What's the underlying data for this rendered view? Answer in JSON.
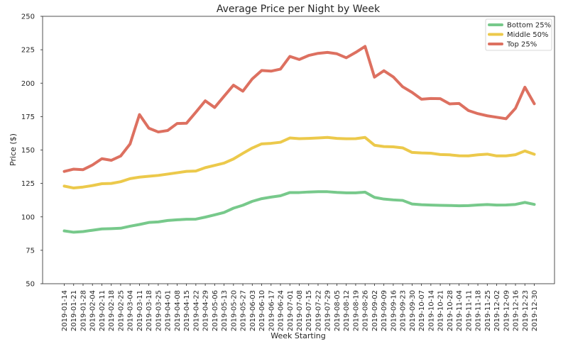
{
  "chart_data": {
    "type": "line",
    "title": "Average Price per Night by Week",
    "xlabel": "Week Starting",
    "ylabel": "Price ($)",
    "ylim": [
      50,
      250
    ],
    "yticks": [
      50,
      75,
      100,
      125,
      150,
      175,
      200,
      225,
      250
    ],
    "grid": false,
    "legend_position": "top-right",
    "categories": [
      "2019-01-14",
      "2019-01-21",
      "2019-01-28",
      "2019-02-04",
      "2019-02-11",
      "2019-02-18",
      "2019-02-25",
      "2019-03-04",
      "2019-03-11",
      "2019-03-18",
      "2019-03-25",
      "2019-04-01",
      "2019-04-08",
      "2019-04-15",
      "2019-04-22",
      "2019-04-29",
      "2019-05-06",
      "2019-05-13",
      "2019-05-20",
      "2019-05-27",
      "2019-06-03",
      "2019-06-10",
      "2019-06-17",
      "2019-06-24",
      "2019-07-01",
      "2019-07-08",
      "2019-07-15",
      "2019-07-22",
      "2019-07-29",
      "2019-08-05",
      "2019-08-12",
      "2019-08-19",
      "2019-08-26",
      "2019-09-02",
      "2019-09-09",
      "2019-09-16",
      "2019-09-23",
      "2019-09-30",
      "2019-10-07",
      "2019-10-14",
      "2019-10-21",
      "2019-10-28",
      "2019-11-04",
      "2019-11-11",
      "2019-11-18",
      "2019-11-25",
      "2019-12-02",
      "2019-12-09",
      "2019-12-16",
      "2019-12-23",
      "2019-12-30"
    ],
    "series": [
      {
        "name": "Bottom 25%",
        "color": "#77c98b",
        "values": [
          89.5,
          88.5,
          89,
          90,
          91,
          91.2,
          91.5,
          93,
          94.3,
          95.8,
          96.2,
          97.3,
          97.8,
          98.2,
          98.3,
          99.8,
          101.5,
          103.3,
          106.5,
          108.7,
          111.6,
          113.6,
          114.8,
          115.8,
          118.2,
          118.2,
          118.6,
          118.8,
          118.8,
          118.3,
          118,
          118,
          118.5,
          114.6,
          113.3,
          112.7,
          112.3,
          109.6,
          109.1,
          108.8,
          108.6,
          108.5,
          108.3,
          108.4,
          108.9,
          109.2,
          108.8,
          108.9,
          109.3,
          110.8,
          109.3
        ]
      },
      {
        "name": "Middle 50%",
        "color": "#ecc94b",
        "values": [
          123,
          121.6,
          122.3,
          123.4,
          124.8,
          125,
          126.3,
          128.6,
          129.7,
          130.4,
          131,
          132,
          133,
          134,
          134.3,
          136.8,
          138.5,
          140.2,
          143.3,
          147.5,
          151.5,
          154.6,
          155,
          155.8,
          159,
          158.5,
          158.7,
          159,
          159.4,
          158.7,
          158.4,
          158.5,
          159.4,
          153.6,
          152.6,
          152.4,
          151.6,
          148.2,
          147.8,
          147.6,
          146.6,
          146.4,
          145.7,
          145.6,
          146.4,
          146.9,
          145.6,
          145.6,
          146.5,
          149.3,
          146.8
        ]
      },
      {
        "name": "Top 25%",
        "color": "#dd7060",
        "values": [
          134,
          135.7,
          135.3,
          138.8,
          143.5,
          142.3,
          145.5,
          154.5,
          176.5,
          166.3,
          163.5,
          164.6,
          169.8,
          170,
          178.3,
          186.8,
          181.8,
          190.2,
          198.5,
          194,
          203.2,
          209.5,
          209,
          210.5,
          220,
          217.7,
          220.7,
          222.3,
          223,
          222,
          219,
          223,
          227.5,
          204.5,
          209.3,
          204.7,
          197.3,
          193.1,
          188,
          188.5,
          188.4,
          184.5,
          184.8,
          179.5,
          177.2,
          175.6,
          174.5,
          173.4,
          181.2,
          197,
          184.6
        ]
      }
    ]
  }
}
